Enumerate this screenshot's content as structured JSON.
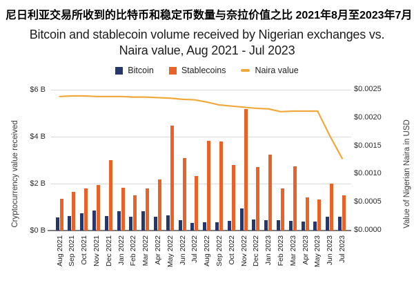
{
  "titles": {
    "chinese": "尼日利亚交易所收到的比特币和稳定币数量与奈拉价值之比 2021年8月至2023年7月",
    "english_line1": "Bitcoin and stablecoin volume received by Nigerian exchanges vs.",
    "english_line2": "Naira value, Aug 2021 - Jul 2023"
  },
  "colors": {
    "bitcoin": "#26386b",
    "stablecoins": "#e96329",
    "naira_line": "#f0a83c",
    "gridline": "#d9d9d9",
    "axis_line": "#7d7d7d"
  },
  "chart_data": {
    "type": "combo",
    "subtype": "grouped-bars-with-line",
    "title": "Bitcoin and stablecoin volume received by Nigerian exchanges vs. Naira value, Aug 2021 - Jul 2023",
    "xlabel": "",
    "ylabel_left": "Cryptocurrency value received",
    "ylabel_right": "Value of Nigerian Naira in USD",
    "ylim_left_billions_usd": [
      0,
      6
    ],
    "ylim_right_usd": [
      0,
      0.0025
    ],
    "grid": "horizontal",
    "legend_position": "top",
    "categories": [
      "Aug 2021",
      "Sep 2021",
      "Oct 2021",
      "Nov 2021",
      "Dec 2021",
      "Jan 2022",
      "Feb 2022",
      "Mar 2022",
      "Apr 2022",
      "May 2022",
      "Jun 2022",
      "Jul 2022",
      "Aug 2022",
      "Sep 2022",
      "Oct 2022",
      "Nov 2022",
      "Dec 2022",
      "Jan 2023",
      "Feb 2023",
      "Mar 2023",
      "Apr 2023",
      "May 2023",
      "Jun 2023",
      "Jul 2023"
    ],
    "series": [
      {
        "name": "Bitcoin",
        "type": "bar",
        "axis": "left",
        "unit": "billion USD",
        "color": "#26386b",
        "values": [
          0.55,
          0.61,
          0.75,
          0.86,
          0.63,
          0.81,
          0.59,
          0.81,
          0.59,
          0.65,
          0.45,
          0.33,
          0.36,
          0.36,
          0.4,
          0.94,
          0.47,
          0.45,
          0.44,
          0.4,
          0.39,
          0.37,
          0.6,
          0.6
        ]
      },
      {
        "name": "Stablecoins",
        "type": "bar",
        "axis": "left",
        "unit": "billion USD",
        "color": "#e96329",
        "values": [
          1.35,
          1.64,
          1.78,
          1.93,
          3.0,
          1.82,
          1.51,
          1.79,
          2.18,
          4.46,
          3.1,
          2.31,
          3.83,
          3.78,
          2.79,
          5.19,
          2.7,
          3.24,
          1.79,
          2.74,
          1.42,
          1.32,
          2.0,
          1.51
        ]
      },
      {
        "name": "Naira value",
        "type": "line",
        "axis": "right",
        "unit": "USD",
        "color": "#f0a83c",
        "values": [
          0.00238,
          0.00239,
          0.00239,
          0.00238,
          0.00238,
          0.00238,
          0.00237,
          0.00237,
          0.00236,
          0.00235,
          0.00233,
          0.00232,
          0.00228,
          0.00223,
          0.00221,
          0.00219,
          0.00217,
          0.00216,
          0.00211,
          0.00212,
          0.00212,
          0.00212,
          0.00168,
          0.00128
        ]
      }
    ],
    "yticks_left": [
      {
        "label": "$6 B",
        "value": 6
      },
      {
        "label": "$4 B",
        "value": 4
      },
      {
        "label": "$2 B",
        "value": 2
      },
      {
        "label": "$0 B",
        "value": 0
      }
    ],
    "yticks_right": [
      {
        "label": "$0.0025",
        "value": 0.0025
      },
      {
        "label": "$0.0020",
        "value": 0.002
      },
      {
        "label": "$0.0015",
        "value": 0.0015
      },
      {
        "label": "$0.0010",
        "value": 0.001
      },
      {
        "label": "$0.0005",
        "value": 0.0005
      },
      {
        "label": "$0.0000",
        "value": 0
      }
    ]
  }
}
